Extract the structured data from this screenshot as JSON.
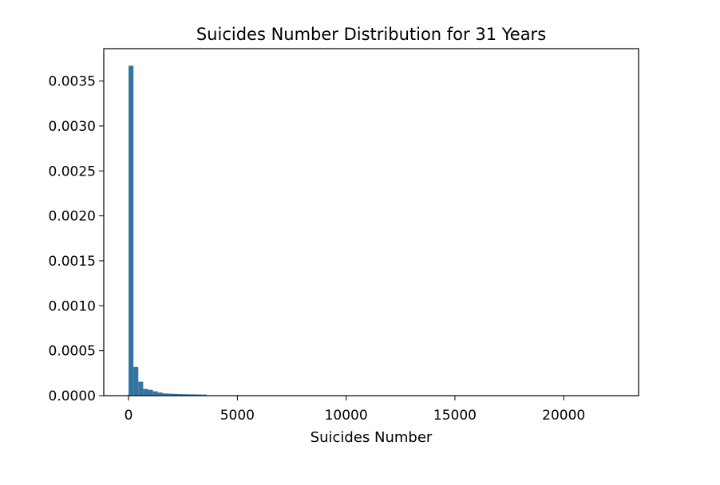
{
  "chart_data": {
    "type": "bar",
    "title": "Suicides Number Distribution for 31 Years",
    "xlabel": "Suicides Number",
    "ylabel": "",
    "xlim": [
      -1140,
      23440
    ],
    "ylim": [
      0,
      0.00386
    ],
    "xticks": [
      0,
      5000,
      10000,
      15000,
      20000
    ],
    "xtick_labels": [
      "0",
      "5000",
      "10000",
      "15000",
      "20000"
    ],
    "yticks": [
      0,
      0.0005,
      0.001,
      0.0015,
      0.002,
      0.0025,
      0.003,
      0.0035
    ],
    "ytick_labels": [
      "0.0000",
      "0.0005",
      "0.0010",
      "0.0015",
      "0.0020",
      "0.0025",
      "0.0030",
      "0.0035"
    ],
    "grid": false,
    "bar_color": "#3274a1",
    "series": [
      {
        "bin_width": 224,
        "bin_start": 0,
        "values": [
          0.00367,
          0.00032,
          0.000155,
          7.5e-05,
          6.5e-05,
          4.8e-05,
          3.5e-05,
          2.5e-05,
          2.2e-05,
          2e-05,
          1.8e-05,
          1.6e-05,
          1.5e-05,
          1.4e-05,
          1.3e-05,
          1.2e-05,
          2e-06,
          2e-06,
          2e-06,
          2e-06,
          2e-06,
          2e-06,
          2e-06,
          2e-06,
          2e-06,
          2e-06,
          2e-06,
          2e-06,
          2e-06,
          2e-06,
          2e-06,
          2e-06,
          2e-06,
          2e-06,
          2e-06,
          2e-06,
          2e-06,
          2e-06,
          2e-06,
          2e-06,
          2e-06,
          2e-06,
          2e-06,
          2e-06,
          2e-06,
          2e-06,
          2e-06,
          2e-06,
          2e-06,
          2e-06,
          2e-06,
          2e-06,
          2e-06,
          2e-06,
          2e-06,
          2e-06,
          2e-06,
          2e-06,
          2e-06,
          2e-06,
          2e-06,
          2e-06,
          2e-06,
          2e-06,
          2e-06,
          2e-06,
          2e-06,
          2e-06,
          2e-06,
          2e-06,
          2e-06,
          2e-06,
          2e-06,
          2e-06,
          2e-06,
          2e-06,
          2e-06,
          2e-06,
          2e-06,
          2e-06,
          2e-06,
          2e-06,
          2e-06,
          2e-06,
          2e-06,
          2e-06,
          2e-06,
          2e-06,
          2e-06,
          2e-06,
          2e-06,
          2e-06,
          2e-06,
          2e-06,
          2e-06,
          2e-06,
          2e-06,
          2e-06,
          2e-06,
          2e-06
        ]
      }
    ]
  }
}
